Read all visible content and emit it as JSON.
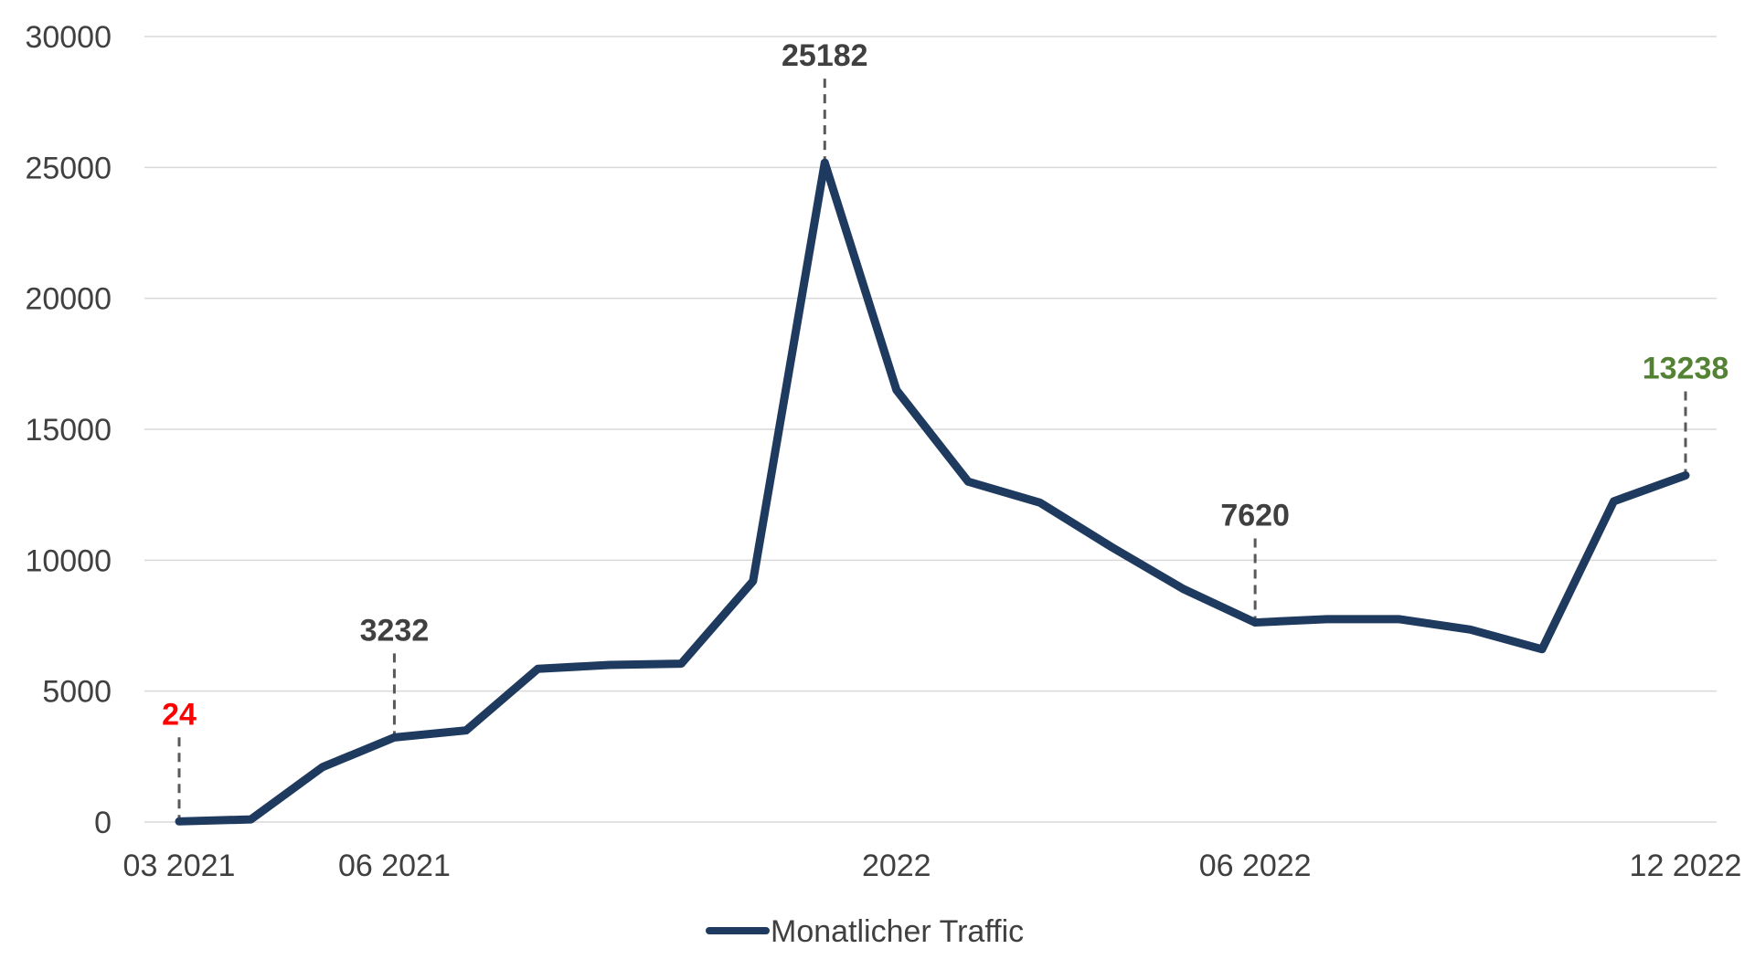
{
  "chart_data": {
    "type": "line",
    "title": "",
    "xlabel": "",
    "ylabel": "",
    "ylim": [
      0,
      30000
    ],
    "yticks": [
      0,
      5000,
      10000,
      15000,
      20000,
      25000,
      30000
    ],
    "grid": true,
    "legend_position": "bottom",
    "colors": {
      "line": "#1f3a5f",
      "label_default": "#404040",
      "label_min": "#ff0000",
      "label_max_last": "#548235"
    },
    "x": [
      "03 2021",
      "04 2021",
      "05 2021",
      "06 2021",
      "07 2021",
      "08 2021",
      "09 2021",
      "10 2021",
      "11 2021",
      "12 2021",
      "01 2022",
      "02 2022",
      "03 2022",
      "04 2022",
      "05 2022",
      "06 2022",
      "07 2022",
      "08 2022",
      "09 2022",
      "10 2022",
      "11 2022",
      "12 2022"
    ],
    "xtick_labels": [
      {
        "index": 0,
        "text": "03 2021"
      },
      {
        "index": 3,
        "text": "06 2021"
      },
      {
        "index": 10,
        "text": "2022"
      },
      {
        "index": 15,
        "text": "06 2022"
      },
      {
        "index": 21,
        "text": "12 2022"
      }
    ],
    "series": [
      {
        "name": "Monatlicher Traffic",
        "values": [
          24,
          100,
          2100,
          3232,
          3500,
          5850,
          6000,
          6050,
          9200,
          25182,
          16500,
          13000,
          12200,
          10500,
          8900,
          7620,
          7750,
          7750,
          7350,
          6600,
          12250,
          13238
        ]
      }
    ],
    "annotations": [
      {
        "index": 0,
        "text": "24",
        "color_key": "label_min"
      },
      {
        "index": 3,
        "text": "3232",
        "color_key": "label_default"
      },
      {
        "index": 9,
        "text": "25182",
        "color_key": "label_default"
      },
      {
        "index": 15,
        "text": "7620",
        "color_key": "label_default"
      },
      {
        "index": 21,
        "text": "13238",
        "color_key": "label_max_last"
      }
    ]
  }
}
